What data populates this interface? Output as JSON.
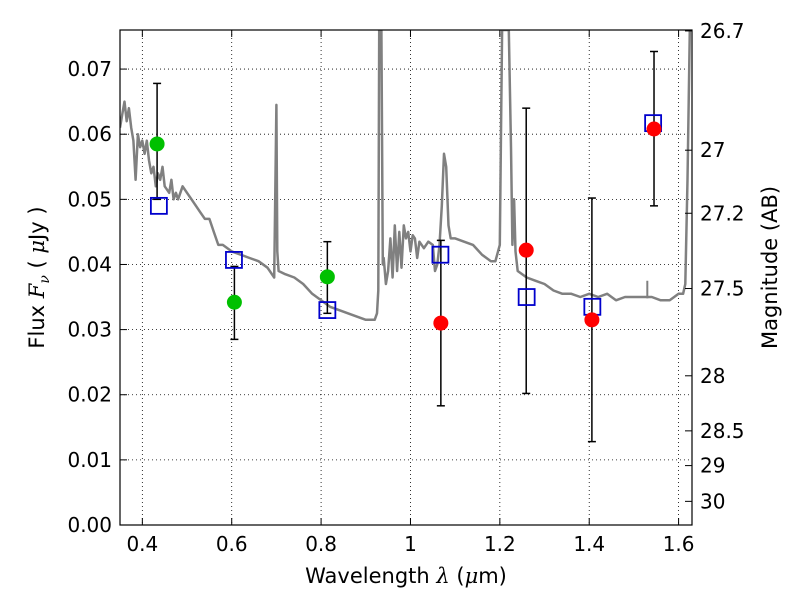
{
  "chart_data": {
    "type": "scatter",
    "xlabel": "Wavelength  λ (μm)",
    "ylabel": "Flux  Fν  ( μJy )",
    "ylabel_parts": {
      "prefix": "Flux  ",
      "var": "F",
      "sub": "ν",
      "mid": "  ( ",
      "mu": "μ",
      "suffix": "Jy )"
    },
    "xlabel_parts": {
      "prefix": "Wavelength  ",
      "var": "λ",
      "mid": " (",
      "mu": "μ",
      "suffix": "m)"
    },
    "y2label": "Magnitude (AB)",
    "xlim": [
      0.35,
      1.63
    ],
    "ylim": [
      0.0,
      0.076
    ],
    "grid": true,
    "x_ticks": [
      0.4,
      0.6,
      0.8,
      1.0,
      1.2,
      1.4,
      1.6
    ],
    "x_tick_labels": [
      "0.4",
      "0.6",
      "0.8",
      "1",
      "1.2",
      "1.4",
      "1.6"
    ],
    "y_ticks": [
      0.0,
      0.01,
      0.02,
      0.03,
      0.04,
      0.05,
      0.06,
      0.07
    ],
    "y_tick_labels": [
      "0.00",
      "0.01",
      "0.02",
      "0.03",
      "0.04",
      "0.05",
      "0.06",
      "0.07"
    ],
    "mag_ticks": [
      26.7,
      27,
      27.2,
      27.5,
      28,
      28.5,
      29,
      30
    ],
    "mag_tick_labels": [
      "26.7",
      "27",
      "27.2",
      "27.5",
      "28",
      "28.5",
      "29",
      "30"
    ],
    "colors": {
      "model": "#808080",
      "green": "#00c000",
      "red": "#ff0000",
      "square": "#0000cc",
      "errorbar": "#000000"
    },
    "model_sed": {
      "x": [
        0.35,
        0.355,
        0.36,
        0.365,
        0.37,
        0.375,
        0.38,
        0.385,
        0.39,
        0.395,
        0.4,
        0.405,
        0.41,
        0.415,
        0.42,
        0.425,
        0.43,
        0.435,
        0.44,
        0.445,
        0.45,
        0.46,
        0.465,
        0.47,
        0.475,
        0.48,
        0.49,
        0.5,
        0.51,
        0.52,
        0.53,
        0.54,
        0.55,
        0.56,
        0.57,
        0.58,
        0.6,
        0.62,
        0.64,
        0.66,
        0.68,
        0.695,
        0.7,
        0.702,
        0.705,
        0.72,
        0.74,
        0.76,
        0.78,
        0.8,
        0.82,
        0.84,
        0.86,
        0.88,
        0.9,
        0.92,
        0.925,
        0.928,
        0.93,
        0.935,
        0.938,
        0.94,
        0.945,
        0.95,
        0.955,
        0.96,
        0.965,
        0.97,
        0.975,
        0.98,
        0.985,
        0.99,
        0.995,
        1.0,
        1.005,
        1.01,
        1.015,
        1.02,
        1.03,
        1.04,
        1.05,
        1.055,
        1.06,
        1.065,
        1.07,
        1.075,
        1.08,
        1.085,
        1.09,
        1.1,
        1.12,
        1.14,
        1.16,
        1.18,
        1.19,
        1.2,
        1.205,
        1.21,
        1.22,
        1.225,
        1.228,
        1.232,
        1.235,
        1.24,
        1.26,
        1.28,
        1.3,
        1.32,
        1.34,
        1.36,
        1.38,
        1.4,
        1.42,
        1.44,
        1.46,
        1.48,
        1.5,
        1.52,
        1.54,
        1.56,
        1.58,
        1.6,
        1.61,
        1.615,
        1.62,
        1.625
      ],
      "y": [
        0.061,
        0.063,
        0.065,
        0.062,
        0.064,
        0.061,
        0.059,
        0.053,
        0.06,
        0.058,
        0.059,
        0.057,
        0.059,
        0.056,
        0.054,
        0.055,
        0.052,
        0.054,
        0.053,
        0.055,
        0.052,
        0.051,
        0.053,
        0.05,
        0.051,
        0.05,
        0.052,
        0.051,
        0.05,
        0.049,
        0.048,
        0.047,
        0.047,
        0.045,
        0.043,
        0.043,
        0.042,
        0.0415,
        0.041,
        0.0405,
        0.0395,
        0.038,
        0.0645,
        0.042,
        0.039,
        0.0385,
        0.038,
        0.037,
        0.0355,
        0.0345,
        0.0335,
        0.033,
        0.0325,
        0.032,
        0.0315,
        0.0315,
        0.0325,
        0.036,
        0.076,
        0.076,
        0.04,
        0.041,
        0.037,
        0.039,
        0.044,
        0.038,
        0.046,
        0.039,
        0.045,
        0.0395,
        0.046,
        0.044,
        0.045,
        0.042,
        0.0445,
        0.044,
        0.041,
        0.0435,
        0.0425,
        0.0435,
        0.043,
        0.039,
        0.04,
        0.043,
        0.049,
        0.057,
        0.055,
        0.046,
        0.044,
        0.044,
        0.0435,
        0.043,
        0.0415,
        0.0405,
        0.0405,
        0.043,
        0.076,
        0.076,
        0.076,
        0.058,
        0.043,
        0.05,
        0.042,
        0.039,
        0.038,
        0.0375,
        0.037,
        0.036,
        0.0355,
        0.0355,
        0.035,
        0.0355,
        0.035,
        0.0355,
        0.0345,
        0.035,
        0.035,
        0.035,
        0.035,
        0.0345,
        0.0345,
        0.0355,
        0.0355,
        0.037,
        0.053,
        0.076
      ]
    },
    "model_spikes": [
      {
        "x": 0.7,
        "y": 0.0645
      },
      {
        "x": 0.938,
        "y": 0.04
      }
    ],
    "extra_spike_at": 1.53,
    "extra_spike_height": 0.0375,
    "squares": [
      {
        "x": 0.437,
        "y": 0.049
      },
      {
        "x": 0.605,
        "y": 0.0407
      },
      {
        "x": 0.814,
        "y": 0.033
      },
      {
        "x": 1.067,
        "y": 0.0415
      },
      {
        "x": 1.26,
        "y": 0.035
      },
      {
        "x": 1.407,
        "y": 0.0335
      },
      {
        "x": 1.543,
        "y": 0.0617
      }
    ],
    "green_points": [
      {
        "x": 0.433,
        "y": 0.0585,
        "lo": 0.05,
        "hi": 0.0678
      },
      {
        "x": 0.606,
        "y": 0.0342,
        "lo": 0.0285,
        "hi": 0.0397
      },
      {
        "x": 0.814,
        "y": 0.0381,
        "lo": 0.0325,
        "hi": 0.0435
      }
    ],
    "red_points": [
      {
        "x": 1.068,
        "y": 0.031,
        "lo": 0.0183,
        "hi": 0.0437
      },
      {
        "x": 1.259,
        "y": 0.0422,
        "lo": 0.0202,
        "hi": 0.064
      },
      {
        "x": 1.406,
        "y": 0.0315,
        "lo": 0.0128,
        "hi": 0.0502
      },
      {
        "x": 1.545,
        "y": 0.0608,
        "lo": 0.049,
        "hi": 0.0727
      }
    ]
  }
}
